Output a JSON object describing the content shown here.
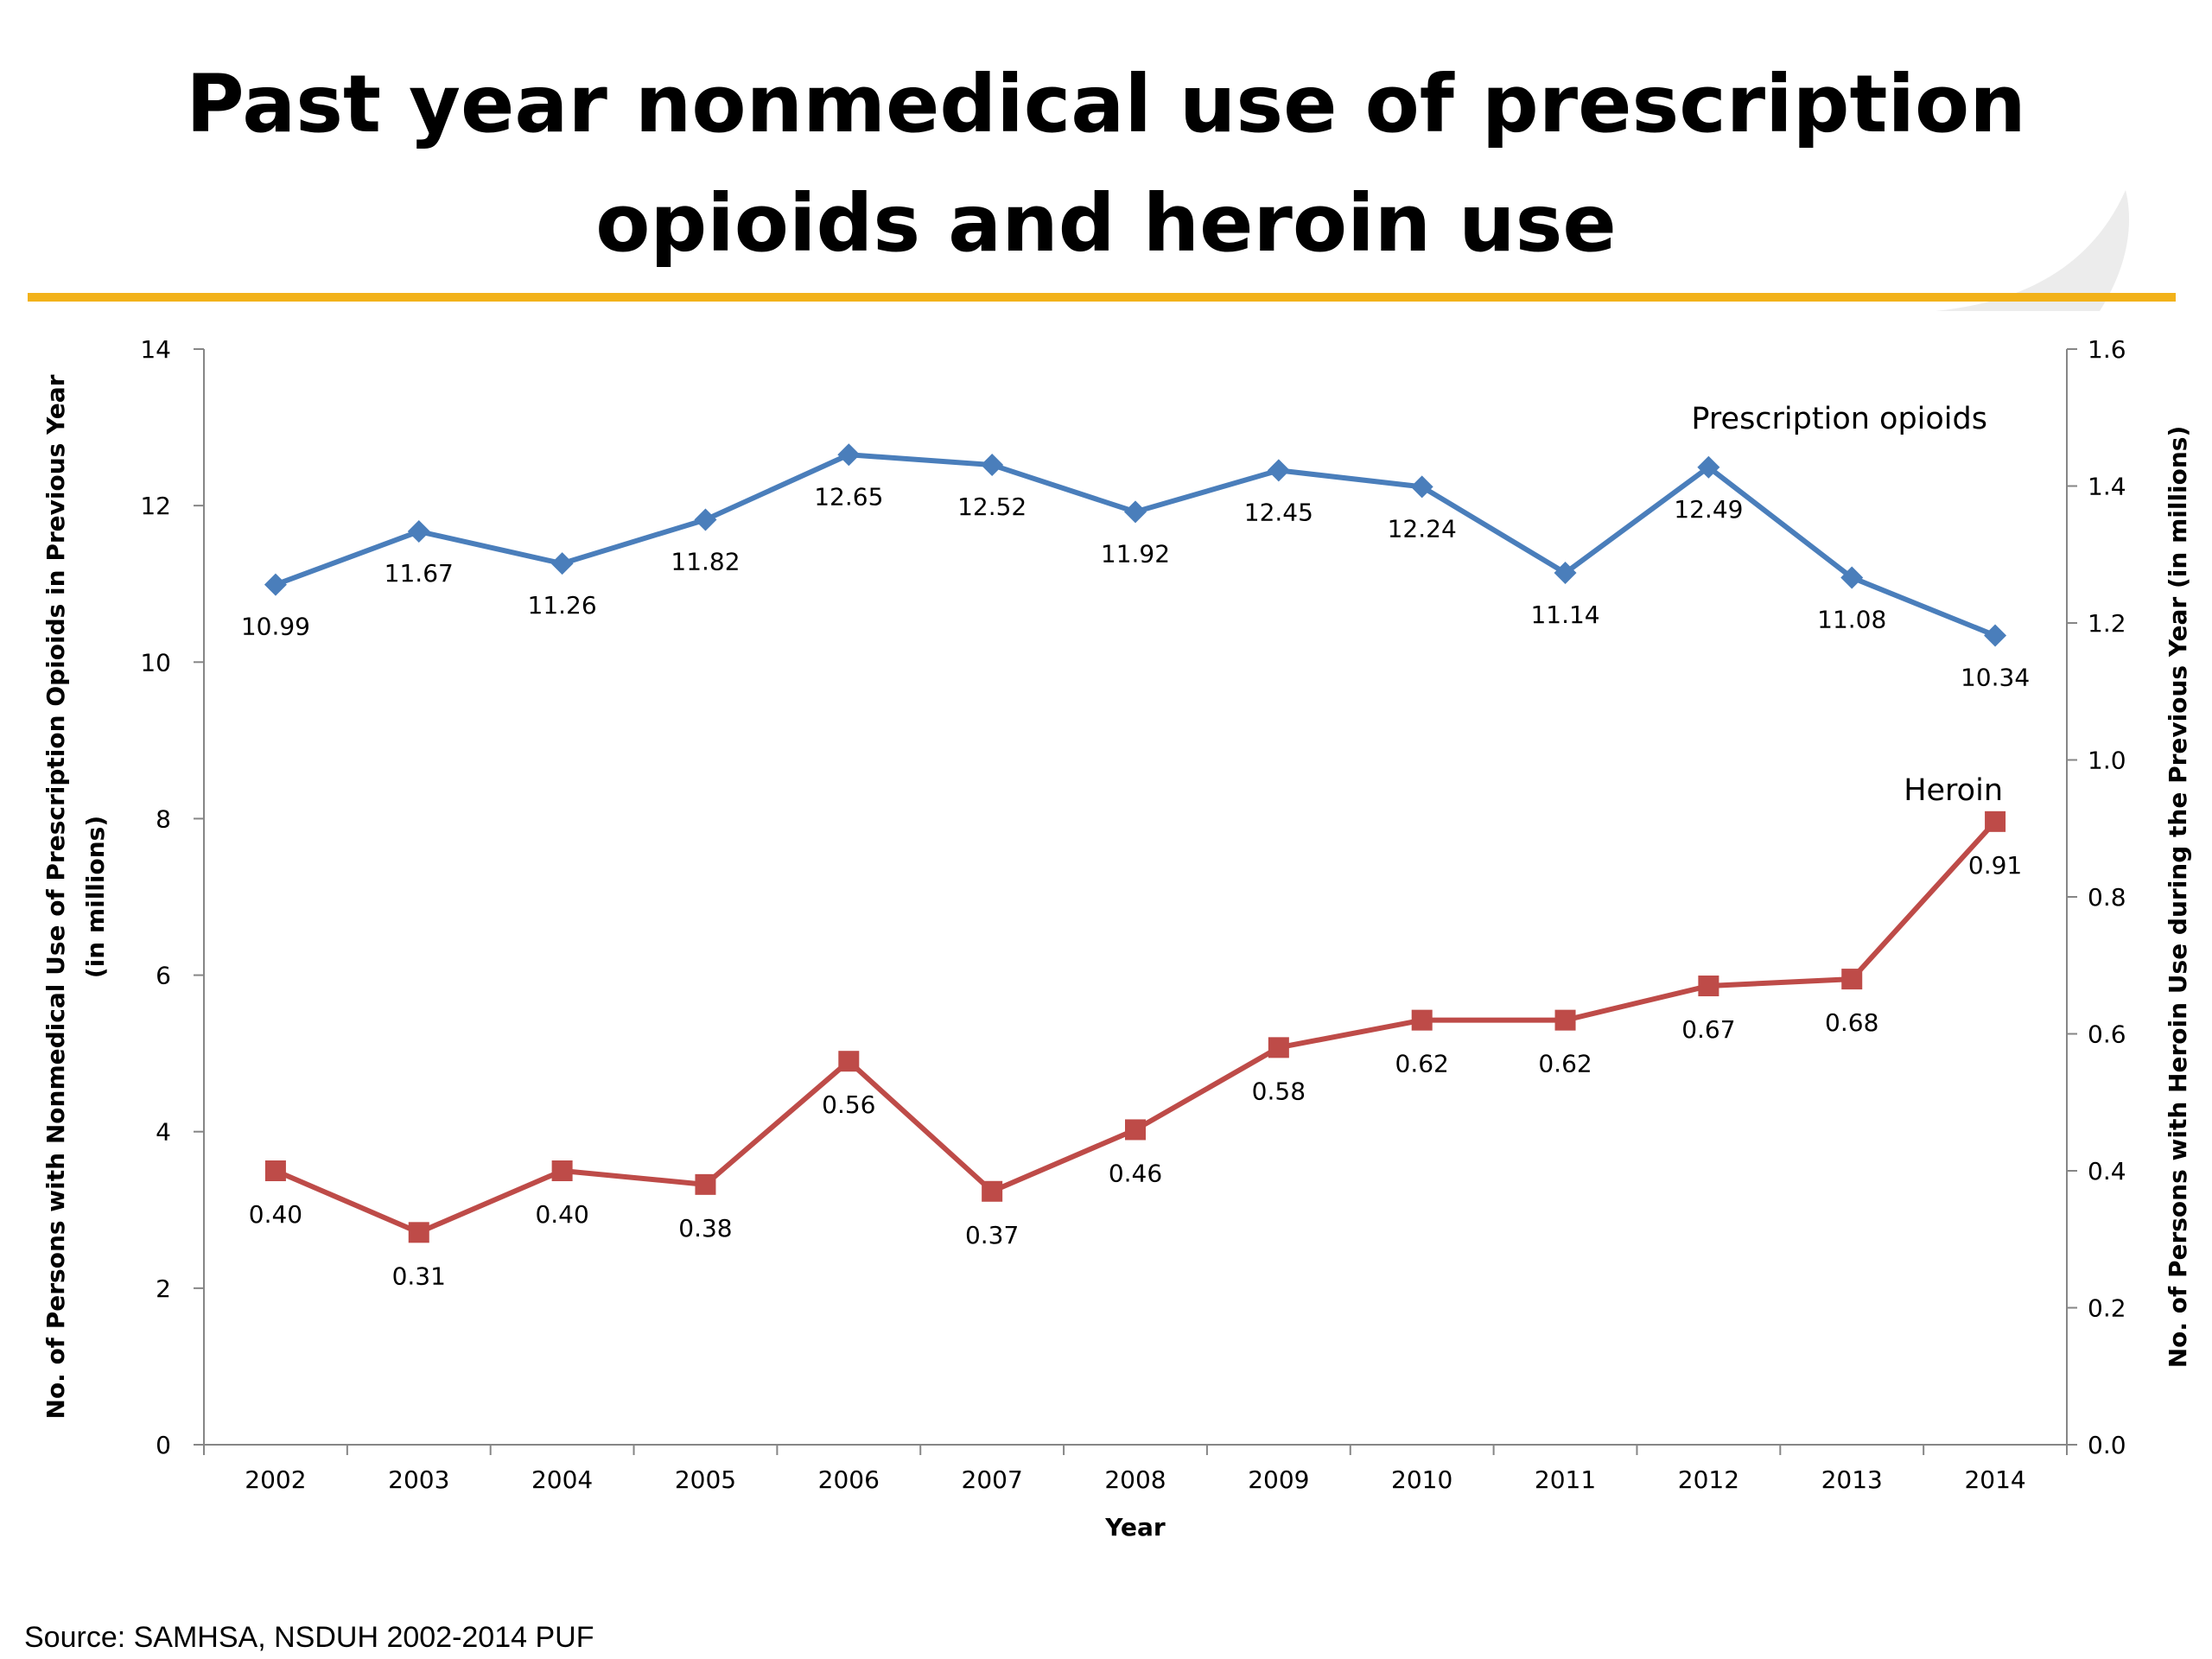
{
  "title_line1": "Past year nonmedical use of prescription",
  "title_line2": "opioids and heroin use",
  "source": "Source: SAMHSA, NSDUH 2002-2014 PUF",
  "colors": {
    "accent_rule": "#f2b21a",
    "opioids": "#4a7ebb",
    "heroin": "#be4b48"
  },
  "chart_data": {
    "type": "line",
    "categories": [
      "2002",
      "2003",
      "2004",
      "2005",
      "2006",
      "2007",
      "2008",
      "2009",
      "2010",
      "2011",
      "2012",
      "2013",
      "2014"
    ],
    "xlabel": "Year",
    "ylabel_left": [
      "No. of Persons with Nonmedical Use of Prescription Opioids in Previous Year",
      "(in millions)"
    ],
    "ylabel_right": "No. of Persons with Heroin Use during the Previous Year (in millions)",
    "ylim_left": [
      0,
      14
    ],
    "yticks_left": [
      "0",
      "2",
      "4",
      "6",
      "8",
      "10",
      "12",
      "14"
    ],
    "ylim_right": [
      0,
      1.6
    ],
    "yticks_right": [
      "0.0",
      "0.2",
      "0.4",
      "0.6",
      "0.8",
      "1.0",
      "1.2",
      "1.4",
      "1.6"
    ],
    "grid": false,
    "series": [
      {
        "name": "Prescription opioids",
        "axis": "left",
        "marker": "diamond",
        "values": [
          10.99,
          11.67,
          11.26,
          11.82,
          12.65,
          12.52,
          11.92,
          12.45,
          12.24,
          11.14,
          12.49,
          11.08,
          10.34
        ],
        "labels": [
          "10.99",
          "11.67",
          "11.26",
          "11.82",
          "12.65",
          "12.52",
          "11.92",
          "12.45",
          "12.24",
          "11.14",
          "12.49",
          "11.08",
          "10.34"
        ]
      },
      {
        "name": "Heroin",
        "axis": "right",
        "marker": "square",
        "values": [
          0.4,
          0.31,
          0.4,
          0.38,
          0.56,
          0.37,
          0.46,
          0.58,
          0.62,
          0.62,
          0.67,
          0.68,
          0.91
        ],
        "labels": [
          "0.40",
          "0.31",
          "0.40",
          "0.38",
          "0.56",
          "0.37",
          "0.46",
          "0.58",
          "0.62",
          "0.62",
          "0.67",
          "0.68",
          "0.91"
        ]
      }
    ]
  }
}
